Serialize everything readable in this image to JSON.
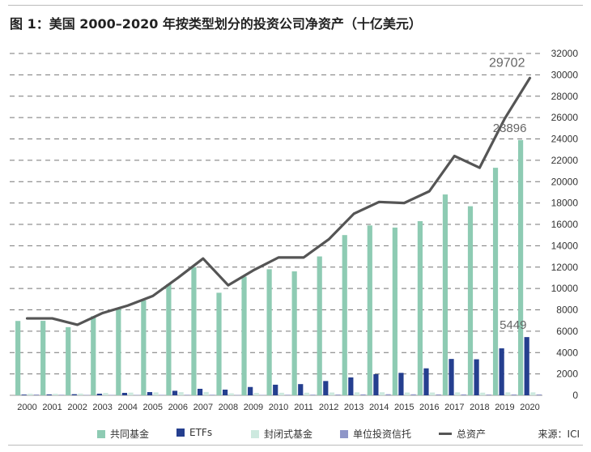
{
  "title": "图 1：美国 2000–2020 年按类型划分的投资公司净资产（十亿美元）",
  "source": "来源：ICI",
  "colors": {
    "mutual_funds": "#8ecbb3",
    "etfs": "#253f8f",
    "closed_end": "#cde9df",
    "uit": "#8f96c8",
    "total": "#555555",
    "grid": "#777777"
  },
  "chart_data": {
    "type": "bar",
    "title": "图 1：美国 2000–2020 年按类型划分的投资公司净资产（十亿美元）",
    "categories": [
      "2000",
      "2001",
      "2002",
      "2003",
      "2004",
      "2005",
      "2006",
      "2007",
      "2008",
      "2009",
      "2010",
      "2011",
      "2012",
      "2013",
      "2014",
      "2015",
      "2016",
      "2017",
      "2018",
      "2019",
      "2020"
    ],
    "ylim": [
      0,
      32000
    ],
    "yticks": [
      "0",
      "2000",
      "4000",
      "6000",
      "8000",
      "10000",
      "12000",
      "14000",
      "16000",
      "18000",
      "20000",
      "22000",
      "24000",
      "26000",
      "28000",
      "30000",
      "32000"
    ],
    "grid": true,
    "legend_position": "bottom",
    "series": [
      {
        "name": "共同基金",
        "type": "bar",
        "color": "#8ecbb3",
        "values": [
          6960,
          6970,
          6380,
          7400,
          8090,
          8890,
          10400,
          12000,
          9600,
          11100,
          11800,
          11600,
          13000,
          15000,
          15900,
          15700,
          16300,
          18800,
          17700,
          21300,
          23896
        ]
      },
      {
        "name": "ETFs",
        "type": "bar",
        "color": "#253f8f",
        "values": [
          66,
          83,
          102,
          151,
          228,
          301,
          423,
          608,
          531,
          777,
          992,
          1048,
          1337,
          1675,
          1975,
          2101,
          2524,
          3402,
          3371,
          4396,
          5449
        ]
      },
      {
        "name": "封闭式基金",
        "type": "bar",
        "color": "#cde9df",
        "values": [
          143,
          141,
          159,
          214,
          253,
          276,
          298,
          312,
          184,
          223,
          238,
          243,
          264,
          279,
          289,
          261,
          262,
          276,
          250,
          278,
          279
        ]
      },
      {
        "name": "单位投资信托",
        "type": "bar",
        "color": "#8f96c8",
        "values": [
          74,
          49,
          36,
          36,
          37,
          41,
          50,
          53,
          29,
          38,
          51,
          60,
          72,
          87,
          101,
          94,
          85,
          85,
          70,
          79,
          79
        ]
      },
      {
        "name": "总资产",
        "type": "line",
        "color": "#555555",
        "values": [
          7200,
          7200,
          6600,
          7700,
          8400,
          9300,
          11000,
          12800,
          10300,
          11700,
          12900,
          12900,
          14600,
          17000,
          18100,
          18000,
          19100,
          22400,
          21300,
          25900,
          29702
        ]
      }
    ],
    "annotations": [
      {
        "series": "总资产",
        "category": "2020",
        "label": "29702"
      },
      {
        "series": "共同基金",
        "category": "2020",
        "label": "23896"
      },
      {
        "series": "ETFs",
        "category": "2020",
        "label": "5449"
      }
    ]
  },
  "legend": {
    "mutual_funds": "共同基金",
    "etfs": "ETFs",
    "closed_end": "封闭式基金",
    "uit": "单位投资信托",
    "total": "总资产"
  }
}
